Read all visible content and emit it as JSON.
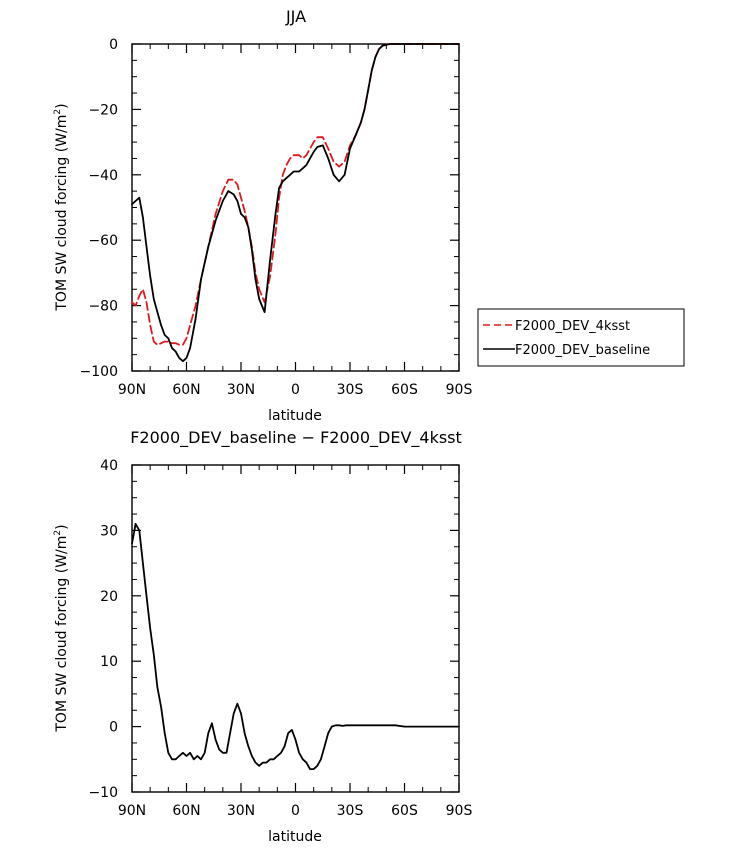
{
  "chart_data": [
    {
      "type": "line",
      "title": "JJA",
      "xlabel": "latitude",
      "ylabel": "TOM SW cloud forcing (W/m²)",
      "ylabel_main": "TOM SW cloud forcing (W/m",
      "ylabel_sup": "2",
      "ylabel_end": ")",
      "xlim": [
        90,
        -90
      ],
      "ylim": [
        -100,
        0
      ],
      "xticks": [
        90,
        60,
        30,
        0,
        -30,
        -60,
        -90
      ],
      "xtick_labels": [
        "90N",
        "60N",
        "30N",
        "0",
        "30S",
        "60S",
        "90S"
      ],
      "yticks": [
        0,
        -20,
        -40,
        -60,
        -80,
        -100
      ],
      "ytick_labels": [
        "0",
        "−20",
        "−40",
        "−60",
        "−80",
        "−100"
      ],
      "legend": {
        "placement": "right",
        "entries": [
          "F2000_DEV_4ksst",
          "F2000_DEV_baseline"
        ]
      },
      "series": [
        {
          "name": "F2000_DEV_4ksst",
          "color": "#e0191e",
          "dash": "dashed",
          "x": [
            90,
            88,
            86,
            84,
            82,
            80,
            78,
            76,
            74,
            72,
            70,
            68,
            66,
            64,
            62,
            60,
            58,
            55,
            52,
            48,
            44,
            40,
            37,
            34,
            32,
            30,
            28,
            26,
            24,
            22,
            20,
            17,
            14,
            11,
            9,
            7,
            5,
            3,
            1,
            0,
            -2,
            -4,
            -6,
            -8,
            -10,
            -12,
            -15,
            -18,
            -21,
            -24,
            -27,
            -30,
            -33,
            -36,
            -38,
            -40,
            -42,
            -44,
            -46,
            -48,
            -50,
            -52,
            -54,
            -56,
            -58,
            -60,
            -62,
            -64,
            -66,
            -68,
            -70,
            -75,
            -80,
            -85,
            -90
          ],
          "y": [
            -79,
            -80,
            -77,
            -75,
            -79,
            -86,
            -91,
            -92,
            -91.5,
            -91,
            -91,
            -91.5,
            -91.5,
            -92,
            -92,
            -90,
            -86,
            -80,
            -72,
            -62,
            -52,
            -45,
            -41.5,
            -41.5,
            -43,
            -47,
            -51,
            -56,
            -62,
            -70,
            -75,
            -79,
            -71,
            -58,
            -47,
            -40,
            -37,
            -35,
            -34,
            -34,
            -34,
            -35,
            -34,
            -32,
            -30,
            -28.5,
            -28.5,
            -32,
            -36,
            -37.5,
            -36,
            -31,
            -28,
            -24,
            -20,
            -14,
            -8,
            -4,
            -1.5,
            -0.5,
            -0.2,
            0,
            0,
            0,
            0,
            0,
            0,
            0,
            0,
            0,
            0,
            0,
            0,
            0,
            0
          ]
        },
        {
          "name": "F2000_DEV_baseline",
          "color": "#000000",
          "dash": "solid",
          "x": [
            90,
            88,
            86,
            84,
            82,
            80,
            78,
            76,
            74,
            72,
            70,
            68,
            66,
            64,
            62,
            60,
            58,
            55,
            52,
            48,
            44,
            40,
            37,
            34,
            32,
            30,
            28,
            26,
            24,
            22,
            20,
            17,
            14,
            11,
            9,
            7,
            5,
            3,
            1,
            0,
            -2,
            -4,
            -6,
            -8,
            -10,
            -12,
            -15,
            -18,
            -21,
            -24,
            -27,
            -30,
            -33,
            -36,
            -38,
            -40,
            -42,
            -44,
            -46,
            -48,
            -50,
            -52,
            -54,
            -56,
            -58,
            -60,
            -62,
            -64,
            -66,
            -68,
            -70,
            -75,
            -80,
            -85,
            -90
          ],
          "y": [
            -49,
            -48,
            -47,
            -53,
            -62,
            -71,
            -78,
            -82,
            -86,
            -89,
            -90,
            -93,
            -94,
            -96,
            -97,
            -96,
            -93,
            -84,
            -72,
            -62,
            -54,
            -48,
            -45,
            -46,
            -48,
            -52,
            -53,
            -56,
            -63,
            -72,
            -78,
            -82,
            -66,
            -52,
            -44,
            -42,
            -41,
            -40,
            -39,
            -39,
            -39,
            -38,
            -37,
            -35,
            -33,
            -31.5,
            -31,
            -35,
            -40,
            -42,
            -40,
            -32,
            -28,
            -24,
            -20,
            -14,
            -8,
            -4,
            -1.5,
            -0.5,
            -0.2,
            0,
            0,
            0,
            0,
            0,
            0,
            0,
            0,
            0,
            0,
            0,
            0,
            0,
            0
          ]
        }
      ]
    },
    {
      "type": "line",
      "title": "F2000_DEV_baseline − F2000_DEV_4ksst",
      "xlabel": "latitude",
      "ylabel": "TOM SW cloud forcing (W/m²)",
      "ylabel_main": "TOM SW cloud forcing (W/m",
      "ylabel_sup": "2",
      "ylabel_end": ")",
      "xlim": [
        90,
        -90
      ],
      "ylim": [
        -10,
        40
      ],
      "xticks": [
        90,
        60,
        30,
        0,
        -30,
        -60,
        -90
      ],
      "xtick_labels": [
        "90N",
        "60N",
        "30N",
        "0",
        "30S",
        "60S",
        "90S"
      ],
      "yticks": [
        40,
        30,
        20,
        10,
        0,
        -10
      ],
      "ytick_labels": [
        "40",
        "30",
        "20",
        "10",
        "0",
        "−10"
      ],
      "series": [
        {
          "name": "F2000_DEV_baseline - F2000_DEV_4ksst",
          "color": "#000000",
          "dash": "solid",
          "x": [
            90,
            88,
            86,
            84,
            82,
            80,
            78,
            76,
            74,
            72,
            70,
            68,
            66,
            64,
            62,
            60,
            58,
            56,
            54,
            52,
            50,
            48,
            46,
            44,
            42,
            40,
            38,
            36,
            34,
            32,
            30,
            28,
            26,
            24,
            22,
            20,
            18,
            16,
            14,
            12,
            10,
            8,
            6,
            4,
            2,
            0,
            -2,
            -4,
            -6,
            -8,
            -10,
            -12,
            -14,
            -16,
            -18,
            -20,
            -22,
            -24,
            -26,
            -28,
            -30,
            -32,
            -34,
            -36,
            -38,
            -40,
            -42,
            -44,
            -46,
            -48,
            -50,
            -55,
            -60,
            -65,
            -70,
            -75,
            -80,
            -85,
            -90
          ],
          "y": [
            28,
            31,
            30,
            25,
            20,
            15,
            11,
            6,
            3,
            -1,
            -4,
            -5,
            -5,
            -4.5,
            -4,
            -4.5,
            -4,
            -5,
            -4.5,
            -5,
            -4,
            -1,
            0.5,
            -2,
            -3.5,
            -4,
            -4,
            -1,
            2,
            3.5,
            2,
            -1,
            -3,
            -4.5,
            -5.5,
            -6,
            -5.5,
            -5.5,
            -5,
            -5,
            -4.5,
            -4,
            -3,
            -1,
            -0.5,
            -2,
            -4,
            -5,
            -5.5,
            -6.5,
            -6.5,
            -6,
            -5,
            -3,
            -1,
            0,
            0.2,
            0.2,
            0.1,
            0.2,
            0.2,
            0.2,
            0.2,
            0.2,
            0.2,
            0.2,
            0.2,
            0.2,
            0.2,
            0.2,
            0.2,
            0.2,
            0,
            0,
            0,
            0,
            0,
            0,
            0
          ]
        }
      ]
    }
  ]
}
